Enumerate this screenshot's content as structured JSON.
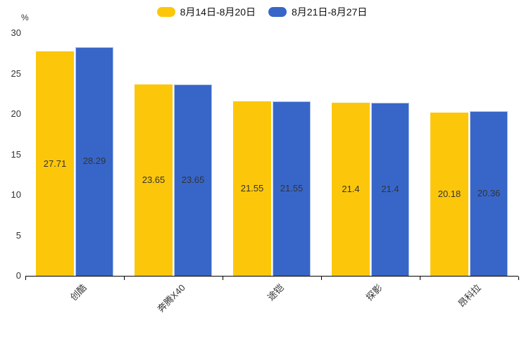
{
  "chart_data": {
    "type": "bar",
    "title": "",
    "unit_label": "%",
    "categories": [
      "创酷",
      "奔腾X40",
      "途铠",
      "探影",
      "昂科拉"
    ],
    "series": [
      {
        "name": "8月14日-8月20日",
        "color": "#FCC70B",
        "values": [
          27.71,
          23.65,
          21.55,
          21.4,
          20.18
        ]
      },
      {
        "name": "8月21日-8月27日",
        "color": "#3866C8",
        "values": [
          28.29,
          23.65,
          21.55,
          21.4,
          20.36
        ]
      }
    ],
    "ylim": [
      0,
      30
    ],
    "yticks": [
      0,
      5,
      10,
      15,
      20,
      25,
      30
    ],
    "legend_position": "top",
    "grid": false,
    "value_labels": "inside-middle",
    "value_label_color": "#333333",
    "axis_color": "#000000"
  }
}
